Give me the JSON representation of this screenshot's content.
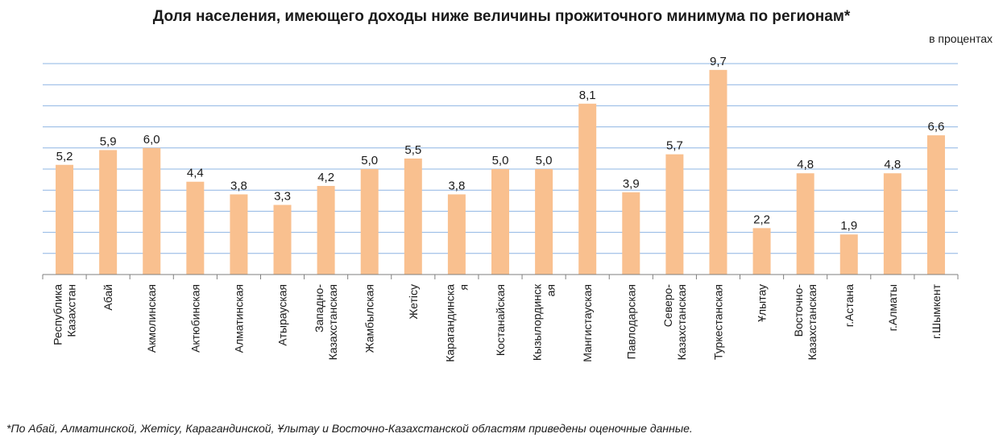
{
  "title": "Доля населения, имеющего доходы ниже величины прожиточного минимума по регионам*",
  "units_note": "в процентах",
  "footnote": "*По Абай,  Алматинской, Жетісу, Карагандинской,  Ұлытау и Восточно-Казахстанской областям приведены оценочные данные.",
  "colors": {
    "bar": "#F9C08F",
    "grid": "#8EB4E3",
    "axis": "#7F7F7F"
  },
  "chart_data": {
    "type": "bar",
    "title": "Доля населения, имеющего доходы ниже величины прожиточного минимума по регионам*",
    "xlabel": "",
    "ylabel": "",
    "ylim": [
      0,
      10
    ],
    "grid": true,
    "categories": [
      [
        "Республика",
        "Казахстан"
      ],
      [
        "Абай"
      ],
      [
        "Акмолинская"
      ],
      [
        "Актюбинская"
      ],
      [
        "Алматинская"
      ],
      [
        "Атырауская"
      ],
      [
        "Западно-",
        "Казахстанская"
      ],
      [
        "Жамбылская"
      ],
      [
        "Жетісу"
      ],
      [
        "Карагандинска",
        "я"
      ],
      [
        "Костанайская"
      ],
      [
        "Кызылординск",
        "ая"
      ],
      [
        "Мангистауская"
      ],
      [
        "Павлодарская"
      ],
      [
        "Северо-",
        "Казахстанская"
      ],
      [
        "Туркестанская"
      ],
      [
        "Ұлытау"
      ],
      [
        "Восточно-",
        "Казахстанская"
      ],
      [
        "г.Астана"
      ],
      [
        "г.Алматы"
      ],
      [
        "г.Шымкент"
      ]
    ],
    "values": [
      5.2,
      5.9,
      6.0,
      4.4,
      3.8,
      3.3,
      4.2,
      5.0,
      5.5,
      3.8,
      5.0,
      5.0,
      8.1,
      3.9,
      5.7,
      9.7,
      2.2,
      4.8,
      1.9,
      4.8,
      6.6
    ],
    "value_labels": [
      "5,2",
      "5,9",
      "6,0",
      "4,4",
      "3,8",
      "3,3",
      "4,2",
      "5,0",
      "5,5",
      "3,8",
      "5,0",
      "5,0",
      "8,1",
      "3,9",
      "5,7",
      "9,7",
      "2,2",
      "4,8",
      "1,9",
      "4,8",
      "6,6"
    ]
  }
}
